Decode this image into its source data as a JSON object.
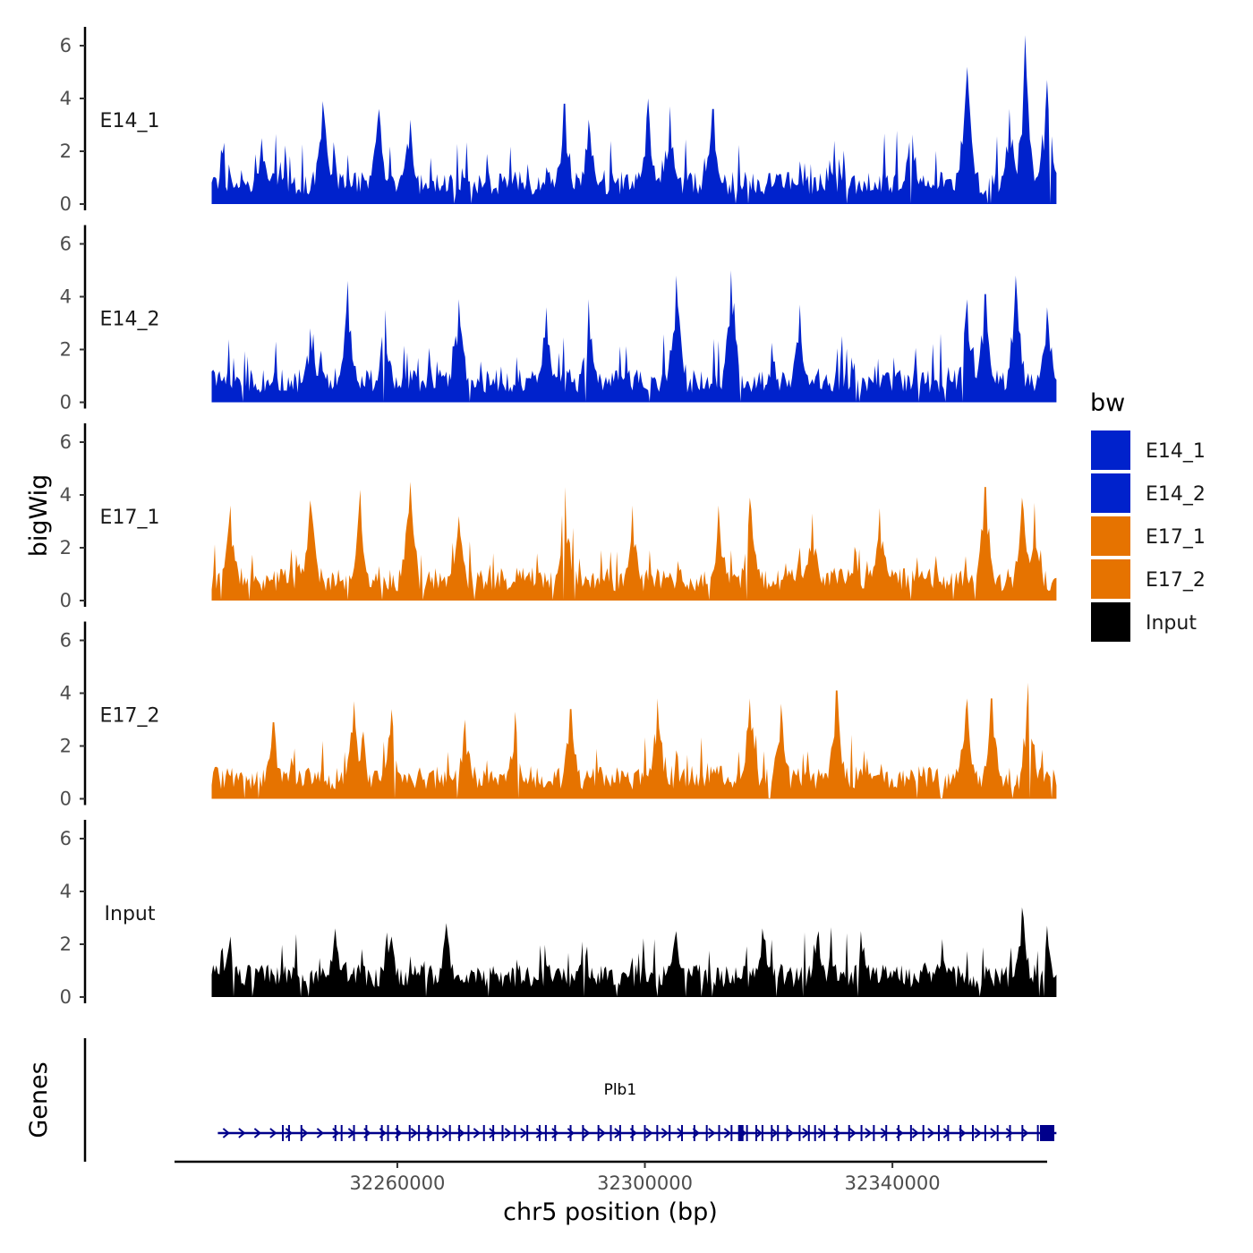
{
  "chart_data": {
    "type": "area",
    "title": "",
    "ylabel": "bigWig",
    "xlabel": "chr5 position (bp)",
    "genes_label": "Genes",
    "xlim": [
      32224000,
      32365000
    ],
    "data_range": [
      32230000,
      32366500
    ],
    "x_ticks": [
      {
        "value": 32260000,
        "label": "32260000"
      },
      {
        "value": 32300000,
        "label": "32300000"
      },
      {
        "value": 32340000,
        "label": "32340000"
      }
    ],
    "ylim": [
      0,
      6.6
    ],
    "y_ticks": [
      {
        "value": 0,
        "label": "0"
      },
      {
        "value": 2,
        "label": "2"
      },
      {
        "value": 4,
        "label": "4"
      },
      {
        "value": 6,
        "label": "6"
      }
    ],
    "tracks": [
      {
        "name": "E14_1",
        "color": "#0022CC",
        "peaks": [
          [
            32238000,
            2.5
          ],
          [
            32248000,
            3.9
          ],
          [
            32257000,
            3.6
          ],
          [
            32262000,
            3.2
          ],
          [
            32287000,
            3.8
          ],
          [
            32291000,
            3.2
          ],
          [
            32300500,
            4.0
          ],
          [
            32304000,
            3.7
          ],
          [
            32311000,
            3.6
          ],
          [
            32343000,
            3.1
          ],
          [
            32352000,
            5.2
          ],
          [
            32359000,
            3.6
          ],
          [
            32361500,
            6.4
          ],
          [
            32365000,
            4.7
          ]
        ]
      },
      {
        "name": "E14_2",
        "color": "#0022CC",
        "peaks": [
          [
            32246000,
            2.8
          ],
          [
            32252000,
            4.6
          ],
          [
            32258000,
            3.5
          ],
          [
            32270000,
            3.9
          ],
          [
            32284000,
            3.6
          ],
          [
            32291000,
            3.9
          ],
          [
            32305000,
            4.8
          ],
          [
            32314000,
            5.0
          ],
          [
            32325000,
            3.7
          ],
          [
            32352000,
            3.9
          ],
          [
            32355000,
            4.1
          ],
          [
            32360000,
            4.8
          ],
          [
            32365000,
            3.6
          ]
        ]
      },
      {
        "name": "E17_1",
        "color": "#E67300",
        "peaks": [
          [
            32233000,
            3.6
          ],
          [
            32246000,
            3.8
          ],
          [
            32254000,
            4.2
          ],
          [
            32262000,
            4.5
          ],
          [
            32270000,
            3.2
          ],
          [
            32287000,
            4.3
          ],
          [
            32298000,
            3.6
          ],
          [
            32312000,
            3.6
          ],
          [
            32317000,
            3.9
          ],
          [
            32327000,
            3.3
          ],
          [
            32338000,
            3.5
          ],
          [
            32355000,
            4.3
          ],
          [
            32361000,
            3.9
          ],
          [
            32363000,
            3.7
          ]
        ]
      },
      {
        "name": "E17_2",
        "color": "#E67300",
        "peaks": [
          [
            32240000,
            2.9
          ],
          [
            32253000,
            3.7
          ],
          [
            32259000,
            3.4
          ],
          [
            32271000,
            3.0
          ],
          [
            32279000,
            3.3
          ],
          [
            32288000,
            3.4
          ],
          [
            32302000,
            3.8
          ],
          [
            32317000,
            3.8
          ],
          [
            32322000,
            3.6
          ],
          [
            32331000,
            4.1
          ],
          [
            32352000,
            3.8
          ],
          [
            32356000,
            3.8
          ],
          [
            32362000,
            4.4
          ]
        ]
      },
      {
        "name": "Input",
        "color": "#000000",
        "peaks": [
          [
            32233000,
            2.3
          ],
          [
            32250000,
            2.6
          ],
          [
            32259000,
            2.3
          ],
          [
            32268000,
            2.8
          ],
          [
            32290000,
            2.1
          ],
          [
            32305000,
            2.5
          ],
          [
            32319000,
            2.6
          ],
          [
            32328000,
            2.5
          ],
          [
            32335000,
            2.5
          ],
          [
            32348000,
            2.2
          ],
          [
            32361000,
            3.4
          ],
          [
            32365000,
            2.7
          ]
        ]
      }
    ],
    "legend": {
      "title": "bw",
      "position": "right",
      "items": [
        {
          "label": "E14_1",
          "color": "#0022CC"
        },
        {
          "label": "E14_2",
          "color": "#0022CC"
        },
        {
          "label": "E17_1",
          "color": "#E67300"
        },
        {
          "label": "E17_2",
          "color": "#E67300"
        },
        {
          "label": "Input",
          "color": "#000000"
        }
      ]
    },
    "gene": {
      "name": "Plb1",
      "color": "#00008B",
      "strand": "+",
      "start": 32231000,
      "end": 32366500,
      "exons": [
        32241500,
        32242500,
        32244500,
        32250000,
        32251000,
        32253000,
        32255000,
        32257500,
        32258500,
        32260000,
        32262000,
        32263500,
        32265000,
        32266500,
        32268500,
        32270000,
        32271500,
        32274000,
        32275500,
        32277000,
        32279000,
        32281000,
        32283000,
        32284000,
        32285500,
        32288000,
        32290000,
        32292500,
        32294500,
        32296000,
        32298000,
        32300000,
        32302000,
        32304000,
        32306000,
        32308000,
        32310000,
        32312000,
        32314000,
        32316500,
        32318000,
        32319000,
        32320500,
        32321500,
        32323000,
        32325000,
        32326500,
        32327500,
        32329000,
        32331000,
        32333000,
        32335000,
        32337000,
        32339000,
        32341000,
        32343000,
        32345000,
        32347500,
        32349000,
        32351000,
        32353000,
        32355000,
        32357000,
        32359000,
        32361000,
        32363500,
        32364500
      ]
    }
  }
}
